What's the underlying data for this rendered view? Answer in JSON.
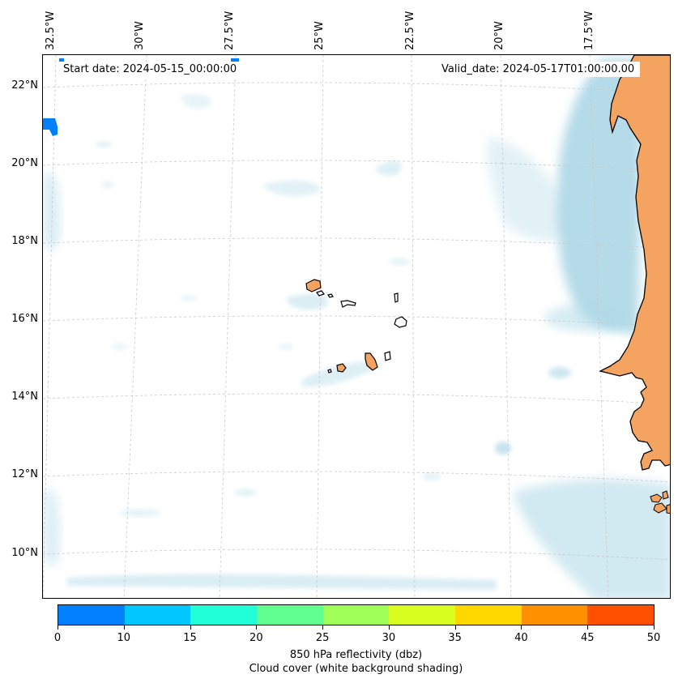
{
  "start_date": "Start date: 2024-05-15_00:00:00",
  "valid_date": "Valid_date: 2024-05-17T01:00:00.00",
  "longitude_labels": [
    "32.5°W",
    "30°W",
    "27.5°W",
    "25°W",
    "22.5°W",
    "20°W",
    "17.5°W"
  ],
  "latitude_labels": [
    "22°N",
    "20°N",
    "18°N",
    "16°N",
    "14°N",
    "12°N",
    "10°N"
  ],
  "colorbar": {
    "ticks": [
      "0",
      "10",
      "15",
      "20",
      "25",
      "30",
      "35",
      "40",
      "45",
      "50"
    ],
    "colors": [
      "#0080ff",
      "#00c8ff",
      "#20ffd8",
      "#60ff90",
      "#a0ff58",
      "#d8ff20",
      "#ffd800",
      "#ff9000",
      "#ff5000"
    ],
    "label": "850 hPa reflectivity (dbz)",
    "sublabel": "Cloud cover (white background shading)"
  },
  "map_colors": {
    "land": "#f4a460",
    "cloud": "#add8e6",
    "reflectivity_low": "#0080ff",
    "gridline": "#c8c8c8",
    "coastline": "#000000"
  }
}
